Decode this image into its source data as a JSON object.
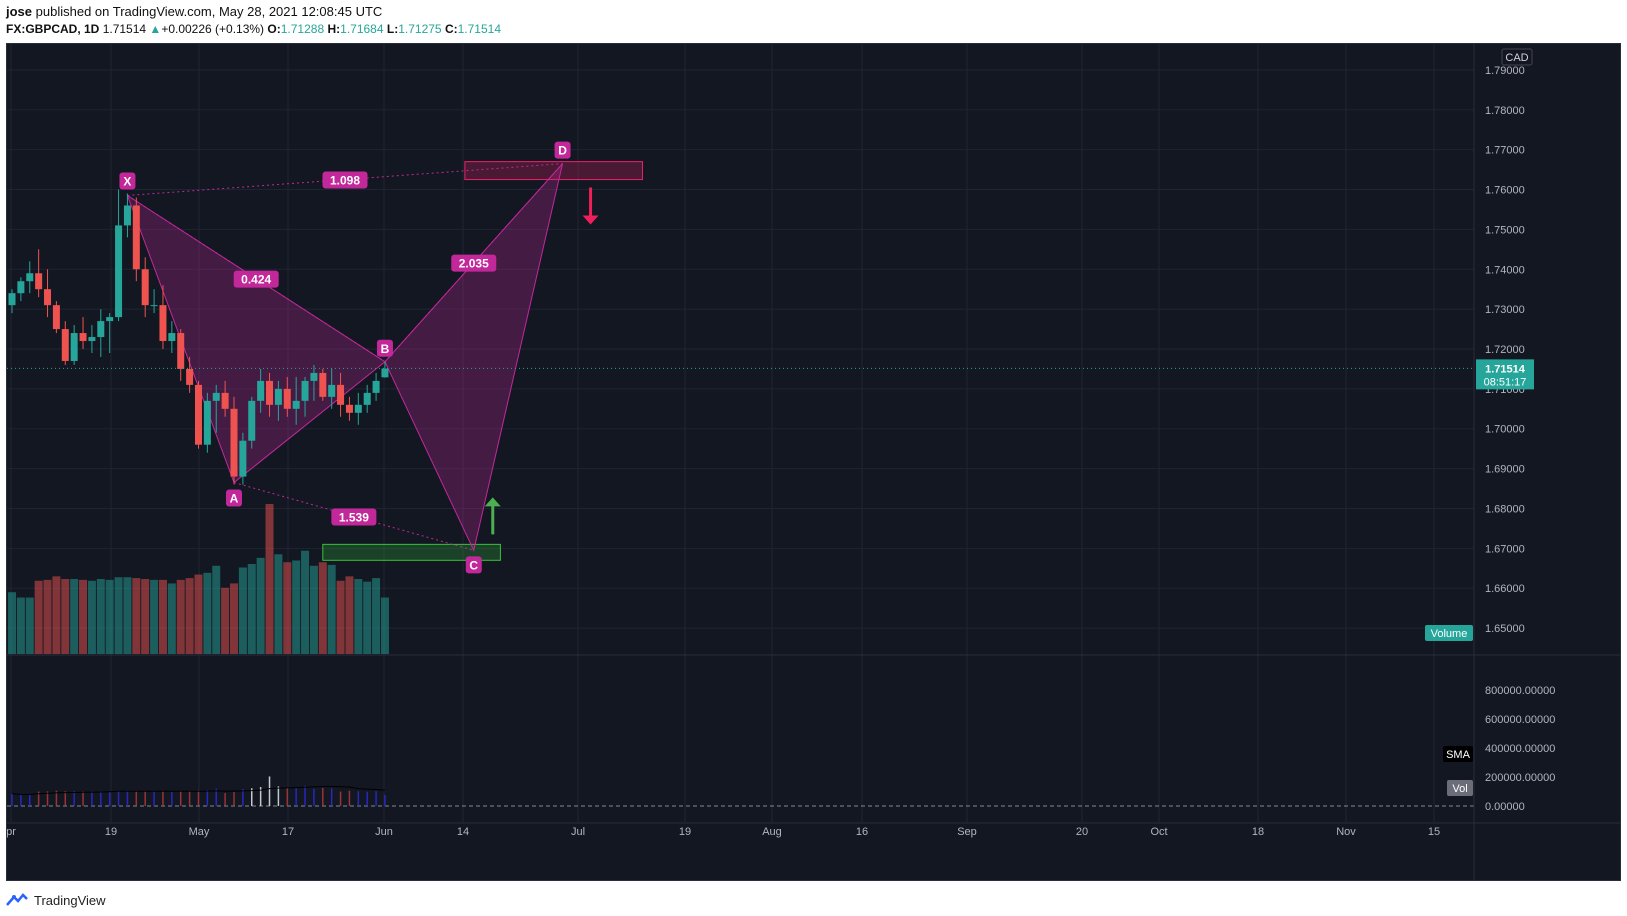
{
  "header": {
    "author": "jose",
    "published_text": "published on TradingView.com, May 28, 2021 12:08:45 UTC",
    "symbol": "FX:GBPCAD, 1D",
    "last": "1.71514",
    "change": "+0.00226 (+0.13%)",
    "open_label": "O:",
    "open": "1.71288",
    "high_label": "H:",
    "high": "1.71684",
    "low_label": "L:",
    "low": "1.71275",
    "close_label": "C:",
    "close": "1.71514"
  },
  "footer": {
    "brand": "TradingView"
  },
  "colors": {
    "up": "#26a69a",
    "down": "#ef5350",
    "pattern": "#c2289a",
    "bg": "#131722"
  },
  "chart_data": {
    "type": "candlestick",
    "currency_label": "CAD",
    "price_axis": {
      "ticks": [
        "1.79000",
        "1.78000",
        "1.77000",
        "1.76000",
        "1.75000",
        "1.74000",
        "1.73000",
        "1.72000",
        "1.71000",
        "1.70000",
        "1.69000",
        "1.68000",
        "1.67000",
        "1.66000",
        "1.65000"
      ],
      "ylim": [
        1.6435,
        1.7965
      ]
    },
    "last_price_label": "1.71514",
    "countdown_label": "08:51:17",
    "volume_label": "Volume",
    "time_axis": {
      "labels": [
        "pr",
        "19",
        "May",
        "17",
        "Jun",
        "14",
        "Jul",
        "19",
        "Aug",
        "16",
        "Sep",
        "20",
        "Oct",
        "18",
        "Nov",
        "15"
      ]
    },
    "candles": [
      {
        "o": 1.731,
        "h": 1.735,
        "l": 1.729,
        "c": 1.734
      },
      {
        "o": 1.734,
        "h": 1.738,
        "l": 1.732,
        "c": 1.737
      },
      {
        "o": 1.737,
        "h": 1.742,
        "l": 1.734,
        "c": 1.739
      },
      {
        "o": 1.739,
        "h": 1.745,
        "l": 1.733,
        "c": 1.735
      },
      {
        "o": 1.735,
        "h": 1.74,
        "l": 1.728,
        "c": 1.731
      },
      {
        "o": 1.731,
        "h": 1.732,
        "l": 1.724,
        "c": 1.725
      },
      {
        "o": 1.725,
        "h": 1.727,
        "l": 1.716,
        "c": 1.717
      },
      {
        "o": 1.717,
        "h": 1.726,
        "l": 1.716,
        "c": 1.724
      },
      {
        "o": 1.724,
        "h": 1.728,
        "l": 1.72,
        "c": 1.722
      },
      {
        "o": 1.722,
        "h": 1.726,
        "l": 1.719,
        "c": 1.723
      },
      {
        "o": 1.723,
        "h": 1.73,
        "l": 1.718,
        "c": 1.727
      },
      {
        "o": 1.727,
        "h": 1.729,
        "l": 1.719,
        "c": 1.728
      },
      {
        "o": 1.728,
        "h": 1.76,
        "l": 1.727,
        "c": 1.751
      },
      {
        "o": 1.751,
        "h": 1.759,
        "l": 1.748,
        "c": 1.756
      },
      {
        "o": 1.756,
        "h": 1.758,
        "l": 1.737,
        "c": 1.74
      },
      {
        "o": 1.74,
        "h": 1.743,
        "l": 1.728,
        "c": 1.731
      },
      {
        "o": 1.731,
        "h": 1.735,
        "l": 1.729,
        "c": 1.731
      },
      {
        "o": 1.731,
        "h": 1.736,
        "l": 1.72,
        "c": 1.722
      },
      {
        "o": 1.722,
        "h": 1.727,
        "l": 1.719,
        "c": 1.724
      },
      {
        "o": 1.724,
        "h": 1.725,
        "l": 1.712,
        "c": 1.715
      },
      {
        "o": 1.715,
        "h": 1.718,
        "l": 1.709,
        "c": 1.711
      },
      {
        "o": 1.711,
        "h": 1.712,
        "l": 1.695,
        "c": 1.696
      },
      {
        "o": 1.696,
        "h": 1.709,
        "l": 1.694,
        "c": 1.707
      },
      {
        "o": 1.707,
        "h": 1.711,
        "l": 1.699,
        "c": 1.709
      },
      {
        "o": 1.709,
        "h": 1.712,
        "l": 1.703,
        "c": 1.705
      },
      {
        "o": 1.705,
        "h": 1.708,
        "l": 1.686,
        "c": 1.688
      },
      {
        "o": 1.688,
        "h": 1.699,
        "l": 1.686,
        "c": 1.697
      },
      {
        "o": 1.697,
        "h": 1.708,
        "l": 1.695,
        "c": 1.707
      },
      {
        "o": 1.707,
        "h": 1.715,
        "l": 1.704,
        "c": 1.712
      },
      {
        "o": 1.712,
        "h": 1.714,
        "l": 1.703,
        "c": 1.706
      },
      {
        "o": 1.706,
        "h": 1.712,
        "l": 1.702,
        "c": 1.71
      },
      {
        "o": 1.71,
        "h": 1.713,
        "l": 1.703,
        "c": 1.705
      },
      {
        "o": 1.705,
        "h": 1.713,
        "l": 1.701,
        "c": 1.707
      },
      {
        "o": 1.707,
        "h": 1.713,
        "l": 1.703,
        "c": 1.712
      },
      {
        "o": 1.712,
        "h": 1.716,
        "l": 1.707,
        "c": 1.714
      },
      {
        "o": 1.714,
        "h": 1.715,
        "l": 1.707,
        "c": 1.708
      },
      {
        "o": 1.708,
        "h": 1.715,
        "l": 1.705,
        "c": 1.711
      },
      {
        "o": 1.711,
        "h": 1.714,
        "l": 1.703,
        "c": 1.706
      },
      {
        "o": 1.706,
        "h": 1.708,
        "l": 1.702,
        "c": 1.704
      },
      {
        "o": 1.704,
        "h": 1.709,
        "l": 1.701,
        "c": 1.706
      },
      {
        "o": 1.706,
        "h": 1.711,
        "l": 1.704,
        "c": 1.709
      },
      {
        "o": 1.709,
        "h": 1.714,
        "l": 1.707,
        "c": 1.712
      },
      {
        "o": 1.7129,
        "h": 1.7168,
        "l": 1.7128,
        "c": 1.7151
      }
    ],
    "volumes": [
      700,
      640,
      640,
      830,
      840,
      880,
      850,
      850,
      840,
      830,
      850,
      840,
      870,
      870,
      860,
      850,
      840,
      840,
      800,
      840,
      860,
      900,
      920,
      1000,
      750,
      800,
      980,
      1020,
      1090,
      1700,
      1130,
      1040,
      1060,
      1170,
      1000,
      1040,
      1010,
      830,
      880,
      850,
      820,
      860,
      640
    ],
    "indicator_axis": {
      "ticks": [
        "800000.00000",
        "600000.00000",
        "400000.00000",
        "200000.00000",
        "0.00000"
      ],
      "ylim": [
        -20000,
        870000
      ]
    },
    "indicator_labels": [
      "SMA",
      "Vol"
    ],
    "pattern": {
      "points": [
        {
          "label": "X",
          "candle": 13,
          "price": 1.7585
        },
        {
          "label": "A",
          "candle": 25,
          "price": 1.6865
        },
        {
          "label": "B",
          "candle": 42,
          "price": 1.7168
        },
        {
          "label": "C",
          "candle": 52,
          "price": 1.6695
        },
        {
          "label": "D",
          "candle": 62,
          "price": 1.7665
        }
      ],
      "ratios": [
        {
          "label": "0.424",
          "between": [
            "X",
            "B"
          ]
        },
        {
          "label": "1.098",
          "between": [
            "X",
            "D"
          ]
        },
        {
          "label": "1.539",
          "between": [
            "A",
            "C"
          ]
        },
        {
          "label": "2.035",
          "between": [
            "B",
            "D"
          ]
        }
      ],
      "zones": [
        {
          "name": "sell-zone",
          "from_candle": 51,
          "to_candle": 71,
          "top": 1.767,
          "bottom": 1.7625,
          "color": "#ef1f6a"
        },
        {
          "name": "buy-zone",
          "from_candle": 35,
          "to_candle": 55,
          "top": 1.671,
          "bottom": 1.667,
          "color": "#35c33b"
        }
      ]
    }
  }
}
